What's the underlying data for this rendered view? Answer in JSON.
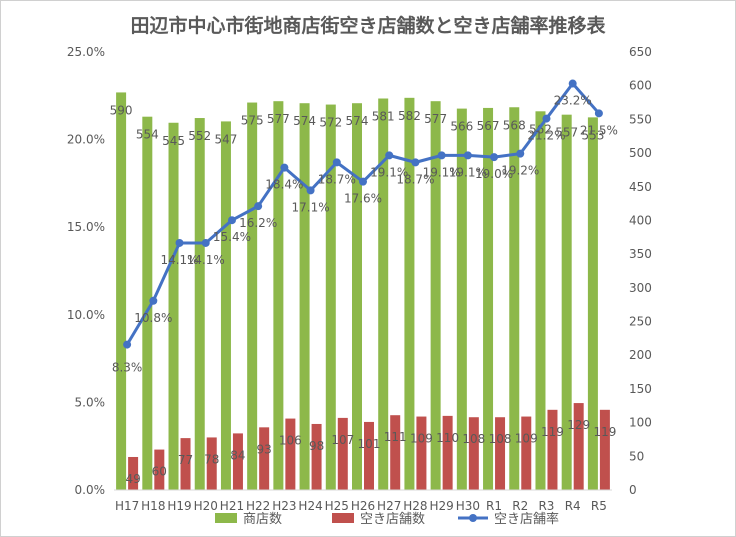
{
  "chart_data": {
    "type": "bar",
    "title": "田辺市中心市街地商店街空き店舗数と空き店舗率推移表",
    "categories": [
      "H17",
      "H18",
      "H19",
      "H20",
      "H21",
      "H22",
      "H23",
      "H24",
      "H25",
      "H26",
      "H27",
      "H28",
      "H29",
      "H30",
      "R1",
      "R2",
      "R3",
      "R4",
      "R5"
    ],
    "series": [
      {
        "name": "商店数",
        "type": "bar",
        "axis": "right",
        "color": "#8DB84A",
        "values": [
          590,
          554,
          545,
          552,
          547,
          575,
          577,
          574,
          572,
          574,
          581,
          582,
          577,
          566,
          567,
          568,
          562,
          557,
          553
        ],
        "labels": [
          "590",
          "554",
          "545",
          "552",
          "547",
          "575",
          "577",
          "574",
          "572",
          "574",
          "581",
          "582",
          "577",
          "566",
          "567",
          "568",
          "562",
          "557",
          "553"
        ]
      },
      {
        "name": "空き店舗数",
        "type": "bar",
        "axis": "right",
        "color": "#C0504D",
        "values": [
          49,
          60,
          77,
          78,
          84,
          93,
          106,
          98,
          107,
          101,
          111,
          109,
          110,
          108,
          108,
          109,
          119,
          129,
          119
        ],
        "labels": [
          "49",
          "60",
          "77",
          "78",
          "84",
          "93",
          "106",
          "98",
          "107",
          "101",
          "111",
          "109",
          "110",
          "108",
          "108",
          "109",
          "119",
          "129",
          "119"
        ]
      },
      {
        "name": "空き店舗率",
        "type": "line",
        "axis": "left",
        "color": "#4472C4",
        "values": [
          8.3,
          10.8,
          14.1,
          14.1,
          15.4,
          16.2,
          18.4,
          17.1,
          18.7,
          17.6,
          19.1,
          18.7,
          19.1,
          19.1,
          19.0,
          19.2,
          21.2,
          23.2,
          21.5
        ],
        "labels": [
          "8.3%",
          "10.8%",
          "14.1%",
          "14.1%",
          "15.4%",
          "16.2%",
          "18.4%",
          "17.1%",
          "18.7%",
          "17.6%",
          "19.1%",
          "18.7%",
          "19.1%",
          "19.1%",
          "19.0%",
          "19.2%",
          "21.2%",
          "23.2%",
          "21.5%"
        ]
      }
    ],
    "y_left": {
      "ticks": [
        "0.0%",
        "5.0%",
        "10.0%",
        "15.0%",
        "20.0%",
        "25.0%"
      ],
      "lim": [
        0,
        25
      ]
    },
    "y_right": {
      "ticks": [
        "0",
        "50",
        "100",
        "150",
        "200",
        "250",
        "300",
        "350",
        "400",
        "450",
        "500",
        "550",
        "600",
        "650"
      ],
      "lim": [
        0,
        650
      ]
    },
    "grid": false,
    "legend": "bottom"
  }
}
